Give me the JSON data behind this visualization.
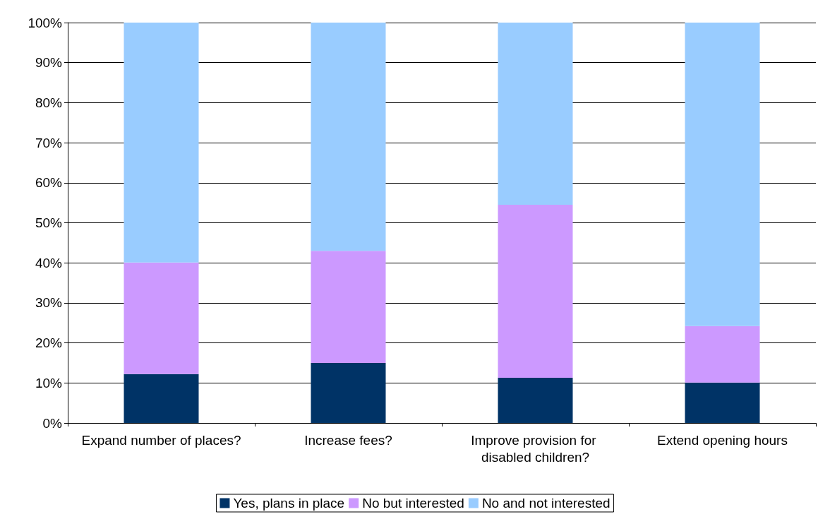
{
  "chart_data": {
    "type": "bar",
    "stacked": true,
    "categories": [
      "Expand number of places?",
      "Increase fees?",
      "Improve provision for disabled children?",
      "Extend opening hours"
    ],
    "series": [
      {
        "name": "Yes, plans in place",
        "color": "#003366",
        "values": [
          12.2,
          15,
          11.3,
          10.1
        ]
      },
      {
        "name": "No but interested",
        "color": "#cc99ff",
        "values": [
          27.9,
          28,
          43.2,
          14.1
        ]
      },
      {
        "name": "No and not interested",
        "color": "#99ccff",
        "values": [
          59.9,
          57,
          45.5,
          75.8
        ]
      }
    ],
    "ylim": [
      0,
      100
    ],
    "yticks": [
      {
        "value": 0,
        "label": "0%"
      },
      {
        "value": 10,
        "label": "10%"
      },
      {
        "value": 20,
        "label": "20%"
      },
      {
        "value": 30,
        "label": "30%"
      },
      {
        "value": 40,
        "label": "40%"
      },
      {
        "value": 50,
        "label": "50%"
      },
      {
        "value": 60,
        "label": "60%"
      },
      {
        "value": 70,
        "label": "70%"
      },
      {
        "value": 80,
        "label": "80%"
      },
      {
        "value": 90,
        "label": "90%"
      },
      {
        "value": 100,
        "label": "100%"
      }
    ],
    "grid": "y",
    "legend": "bottom"
  }
}
